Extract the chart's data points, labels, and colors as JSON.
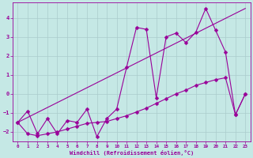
{
  "xlabel": "Windchill (Refroidissement éolien,°C)",
  "ylabel": "",
  "bg_color": "#c5e8e5",
  "line_color": "#990099",
  "grid_color": "#aacccc",
  "xlim": [
    -0.5,
    23.5
  ],
  "ylim": [
    -2.5,
    4.8
  ],
  "xticks": [
    0,
    1,
    2,
    3,
    4,
    5,
    6,
    7,
    8,
    9,
    10,
    11,
    12,
    13,
    14,
    15,
    16,
    17,
    18,
    19,
    20,
    21,
    22,
    23
  ],
  "yticks": [
    -2,
    -1,
    0,
    1,
    2,
    3,
    4
  ],
  "series1": [
    [
      0,
      -1.5
    ],
    [
      1,
      -0.9
    ],
    [
      2,
      -2.1
    ],
    [
      3,
      -1.3
    ],
    [
      4,
      -2.1
    ],
    [
      5,
      -1.4
    ],
    [
      6,
      -1.5
    ],
    [
      7,
      -0.8
    ],
    [
      8,
      -2.25
    ],
    [
      9,
      -1.3
    ],
    [
      10,
      -0.8
    ],
    [
      11,
      1.4
    ],
    [
      12,
      3.5
    ],
    [
      13,
      3.4
    ],
    [
      14,
      -0.2
    ],
    [
      15,
      3.0
    ],
    [
      16,
      3.2
    ],
    [
      17,
      2.7
    ],
    [
      18,
      3.25
    ],
    [
      19,
      4.5
    ],
    [
      20,
      3.35
    ],
    [
      21,
      2.2
    ],
    [
      22,
      -1.1
    ],
    [
      23,
      0.0
    ]
  ],
  "series2": [
    [
      0,
      -1.5
    ],
    [
      1,
      -2.1
    ],
    [
      2,
      -2.2
    ],
    [
      3,
      -2.1
    ],
    [
      4,
      -2.0
    ],
    [
      5,
      -1.85
    ],
    [
      6,
      -1.7
    ],
    [
      7,
      -1.55
    ],
    [
      8,
      -1.5
    ],
    [
      9,
      -1.45
    ],
    [
      10,
      -1.3
    ],
    [
      11,
      -1.15
    ],
    [
      12,
      -0.95
    ],
    [
      13,
      -0.75
    ],
    [
      14,
      -0.5
    ],
    [
      15,
      -0.25
    ],
    [
      16,
      0.0
    ],
    [
      17,
      0.2
    ],
    [
      18,
      0.45
    ],
    [
      19,
      0.6
    ],
    [
      20,
      0.75
    ],
    [
      21,
      0.85
    ],
    [
      22,
      -1.1
    ],
    [
      23,
      0.0
    ]
  ],
  "series3_x": [
    0,
    23
  ],
  "series3_y": [
    -1.5,
    4.5
  ]
}
